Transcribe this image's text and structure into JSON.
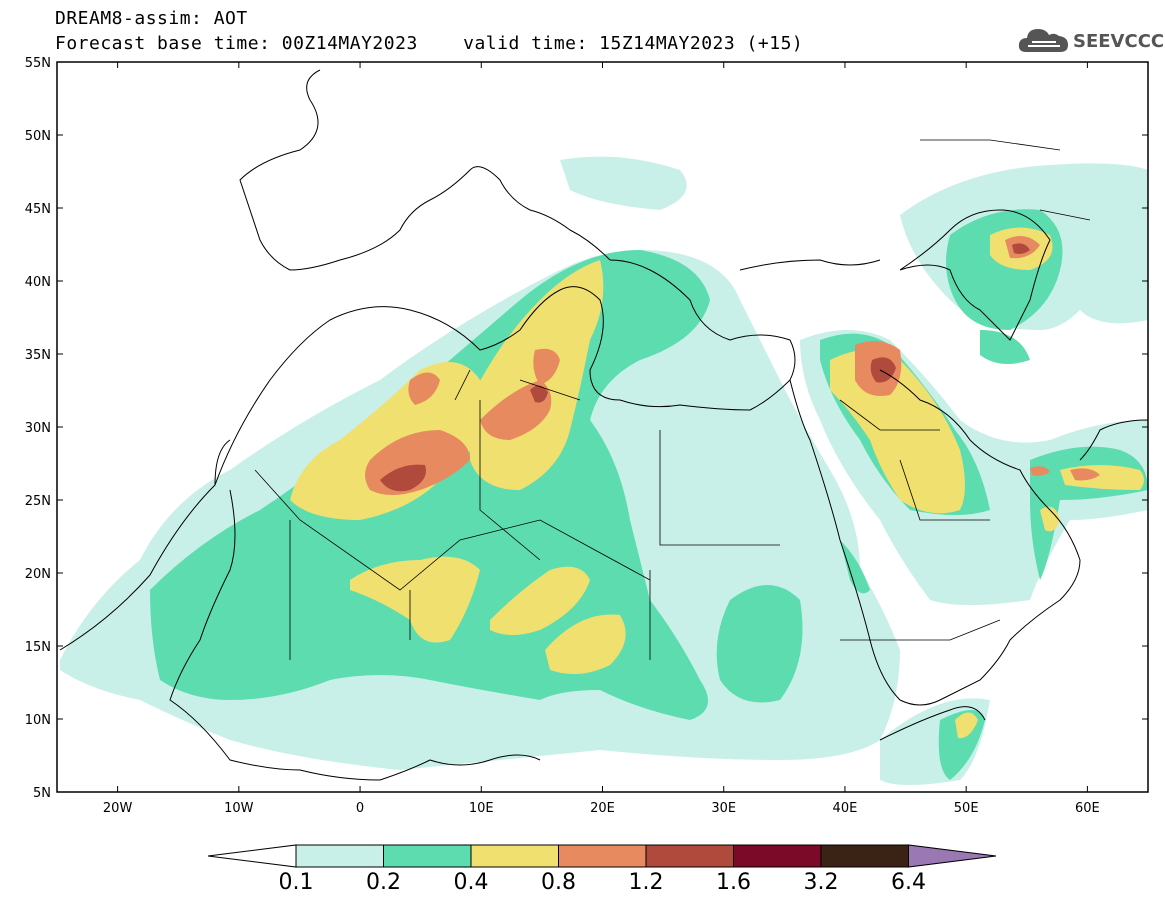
{
  "header": {
    "title_line1": "DREAM8-assim: AOT",
    "title_line2": "Forecast base time: 00Z14MAY2023    valid time: 15Z14MAY2023 (+15)",
    "logo_text": "SEEVCCC"
  },
  "map": {
    "variable": "AOT",
    "lon_range": [
      -25,
      65
    ],
    "lat_range": [
      5,
      55
    ],
    "lat_ticks": [
      "5N",
      "10N",
      "15N",
      "20N",
      "25N",
      "30N",
      "35N",
      "40N",
      "45N",
      "50N",
      "55N"
    ],
    "lon_ticks": [
      "20W",
      "10W",
      "0",
      "10E",
      "20E",
      "30E",
      "40E",
      "50E",
      "60E"
    ]
  },
  "colorbar": {
    "levels": [
      "0.1",
      "0.2",
      "0.4",
      "0.8",
      "1.2",
      "1.6",
      "3.2",
      "6.4"
    ],
    "colors": [
      "#c8f0e8",
      "#5ddcb0",
      "#f0e070",
      "#e88a60",
      "#b04a3c",
      "#7a0a28",
      "#3a2214",
      "#9a78b4"
    ]
  }
}
